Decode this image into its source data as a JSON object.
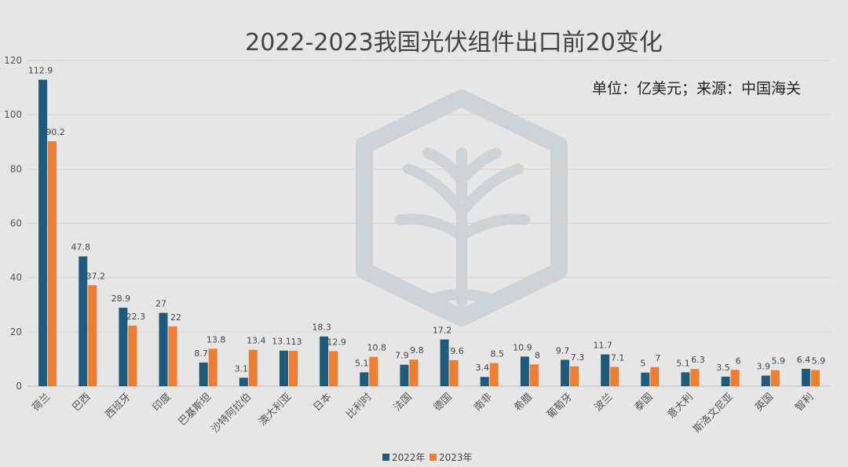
{
  "chart_data": {
    "type": "bar",
    "title": "2022-2023我国光伏组件出口前20变化",
    "subtitle": "单位：亿美元；来源：中国海关",
    "categories": [
      "荷兰",
      "巴西",
      "西班牙",
      "印度",
      "巴基斯坦",
      "沙特阿拉伯",
      "澳大利亚",
      "日本",
      "比利时",
      "法国",
      "德国",
      "南非",
      "希腊",
      "葡萄牙",
      "波兰",
      "泰国",
      "意大利",
      "斯洛文尼亚",
      "英国",
      "智利"
    ],
    "series": [
      {
        "name": "2022年",
        "color": "#1f5a7a",
        "values": [
          112.9,
          47.8,
          28.9,
          27,
          8.7,
          3.1,
          13.1,
          18.3,
          5.1,
          7.9,
          17.2,
          3.4,
          10.9,
          9.7,
          11.7,
          5,
          5.1,
          3.5,
          3.9,
          6.4
        ]
      },
      {
        "name": "2023年",
        "color": "#ed7d31",
        "values": [
          90.2,
          37.2,
          22.3,
          22,
          13.8,
          13.4,
          13,
          12.9,
          10.8,
          9.8,
          9.6,
          8.5,
          8,
          7.3,
          7.1,
          7,
          6.3,
          6,
          5.9,
          5.9
        ]
      }
    ],
    "ylim": [
      0,
      120
    ],
    "yticks": [
      0,
      20,
      40,
      60,
      80,
      100,
      120
    ],
    "grid": true,
    "legend_position": "bottom-center"
  }
}
